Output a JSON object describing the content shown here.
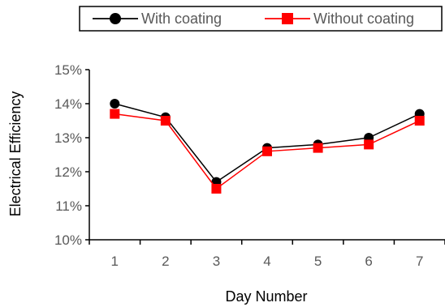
{
  "chart_data": {
    "type": "line",
    "title": "",
    "xlabel": "Day Number",
    "ylabel": "Electrical Efficiency",
    "categories": [
      "1",
      "2",
      "3",
      "4",
      "5",
      "6",
      "7"
    ],
    "ylim": [
      0.1,
      0.15
    ],
    "y_ticks": [
      "10%",
      "11%",
      "12%",
      "13%",
      "14%",
      "15%"
    ],
    "grid": false,
    "legend_position": "top",
    "series": [
      {
        "name": "With coating",
        "marker": "circle",
        "color": "#000000",
        "values": [
          0.14,
          0.136,
          0.117,
          0.127,
          0.128,
          0.13,
          0.137
        ]
      },
      {
        "name": "Without coating",
        "marker": "square",
        "color": "#ff0000",
        "values": [
          0.137,
          0.135,
          0.115,
          0.126,
          0.127,
          0.128,
          0.135
        ]
      }
    ]
  }
}
